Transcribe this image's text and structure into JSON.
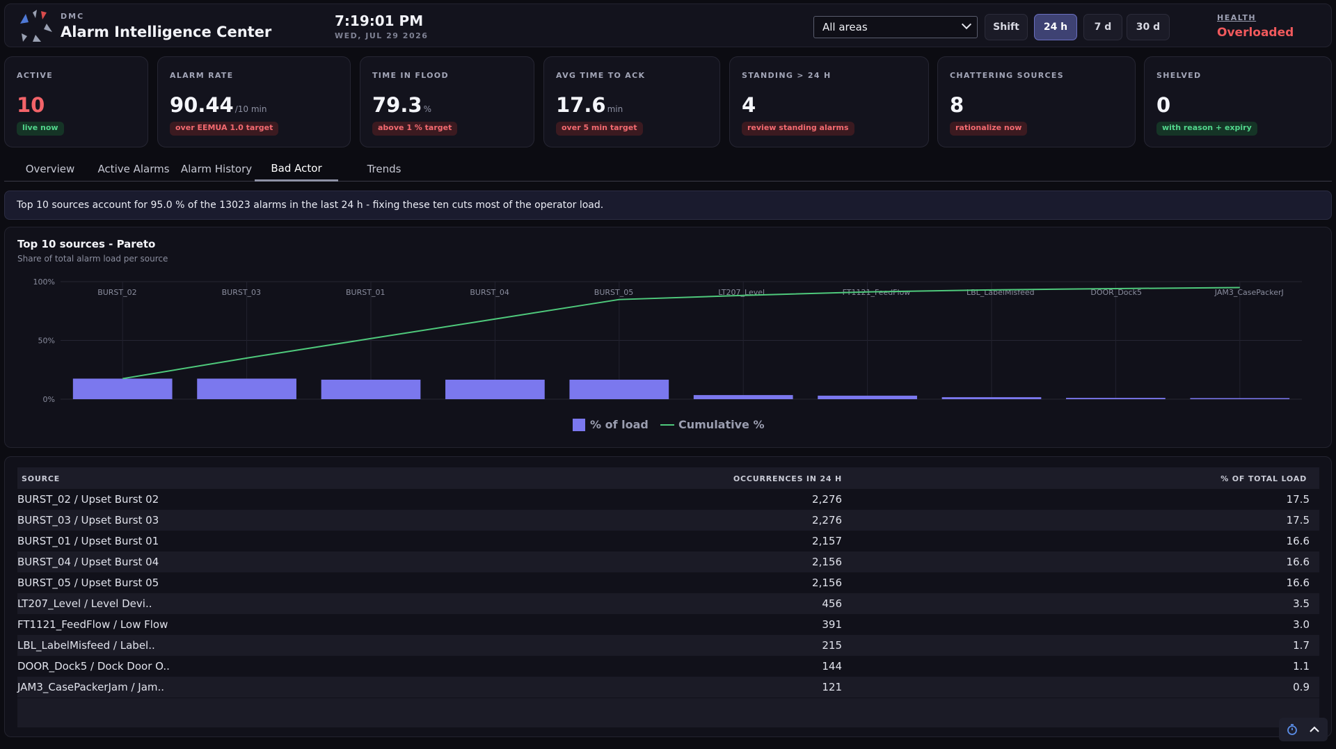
{
  "header": {
    "brand_small": "DMC",
    "brand_title": "Alarm Intelligence Center",
    "time": "7:19:01 PM",
    "date": "WED, JUL 29 2026",
    "area_select": "All areas",
    "ranges": [
      "Shift",
      "24 h",
      "7 d",
      "30 d"
    ],
    "active_range": "24 h",
    "health_label": "HEALTH",
    "health_value": "Overloaded"
  },
  "kpis": [
    {
      "label": "ACTIVE",
      "value": "10",
      "unit": "",
      "pill": "live now",
      "pill_status": "green"
    },
    {
      "label": "ALARM RATE",
      "value": "90.44",
      "unit": "/10 min",
      "pill": "over EEMUA 1.0 target",
      "pill_status": "red"
    },
    {
      "label": "TIME IN FLOOD",
      "value": "79.3",
      "unit": "%",
      "pill": "above 1 % target",
      "pill_status": "red"
    },
    {
      "label": "AVG TIME TO ACK",
      "value": "17.6",
      "unit": "min",
      "pill": "over 5 min target",
      "pill_status": "red"
    },
    {
      "label": "STANDING > 24 H",
      "value": "4",
      "unit": "",
      "pill": "review standing alarms",
      "pill_status": "red"
    },
    {
      "label": "CHATTERING SOURCES",
      "value": "8",
      "unit": "",
      "pill": "rationalize now",
      "pill_status": "red"
    },
    {
      "label": "SHELVED",
      "value": "0",
      "unit": "",
      "pill": "with reason + expiry",
      "pill_status": "green"
    }
  ],
  "tabs": [
    "Overview",
    "Active Alarms",
    "Alarm History",
    "Bad Actor",
    "Trends"
  ],
  "active_tab": "Bad Actor",
  "banner": "Top 10 sources account for 95.0 % of the 13023 alarms in the last 24 h - fixing these ten cuts most of the operator load.",
  "chart": {
    "title": "Top 10 sources - Pareto",
    "subtitle": "Share of total alarm load per source",
    "legend_bar": "% of load",
    "legend_line": "Cumulative %",
    "colors": {
      "bar": "#7b78ee",
      "line": "#4fca7c"
    }
  },
  "chart_data": {
    "type": "bar",
    "categories": [
      "BURST_02",
      "BURST_03",
      "BURST_01",
      "BURST_04",
      "BURST_05",
      "LT207_Level",
      "FT1121_FeedFlow",
      "LBL_LabelMisfeed",
      "DOOR_Dock5",
      "JAM3_CasePackerJ"
    ],
    "series": [
      {
        "name": "% of load",
        "type": "bar",
        "values": [
          17.5,
          17.5,
          16.6,
          16.6,
          16.6,
          3.5,
          3.0,
          1.7,
          1.1,
          0.9
        ]
      },
      {
        "name": "Cumulative %",
        "type": "line",
        "values": [
          17.5,
          35.0,
          51.6,
          68.2,
          84.8,
          88.3,
          91.3,
          93.0,
          94.1,
          95.0
        ]
      }
    ],
    "yticks": [
      "0%",
      "50%",
      "100%"
    ],
    "ylim": [
      0,
      100
    ],
    "legend_position": "bottom"
  },
  "table": {
    "headers": [
      "SOURCE",
      "OCCURRENCES IN 24 H",
      "% OF TOTAL LOAD"
    ],
    "rows": [
      [
        "BURST_02 / Upset Burst 02",
        "2,276",
        "17.5"
      ],
      [
        "BURST_03 / Upset Burst 03",
        "2,276",
        "17.5"
      ],
      [
        "BURST_01 / Upset Burst 01",
        "2,157",
        "16.6"
      ],
      [
        "BURST_04 / Upset Burst 04",
        "2,156",
        "16.6"
      ],
      [
        "BURST_05 / Upset Burst 05",
        "2,156",
        "16.6"
      ],
      [
        "LT207_Level / Level Devi..",
        "456",
        "3.5"
      ],
      [
        "FT1121_FeedFlow / Low Flow",
        "391",
        "3.0"
      ],
      [
        "LBL_LabelMisfeed / Label..",
        "215",
        "1.7"
      ],
      [
        "DOOR_Dock5 / Dock Door O..",
        "144",
        "1.1"
      ],
      [
        "JAM3_CasePackerJam / Jam..",
        "121",
        "0.9"
      ]
    ]
  },
  "icons": {
    "logo": "dmc-logo-icon",
    "select": "chevron-down-icon",
    "timer": "stopwatch-icon",
    "scroll_top": "chevron-up-icon"
  }
}
